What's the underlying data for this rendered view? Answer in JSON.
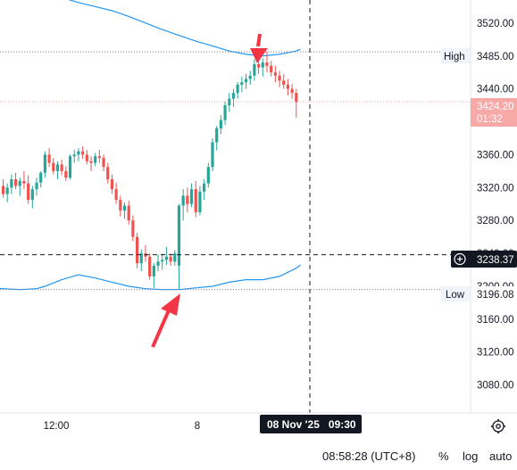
{
  "chart_data": {
    "type": "candlestick",
    "y_ticks": [
      3520,
      3480,
      3440,
      3400,
      3360,
      3320,
      3280,
      3240,
      3200,
      3160,
      3120,
      3080
    ],
    "y_tick_labels": [
      "3520.00",
      "3480.00",
      "3440.00",
      "3400.00",
      "3360.00",
      "3320.00",
      "3280.00",
      "3240.00",
      "3200.00",
      "3160.00",
      "3120.00",
      "3080.00"
    ],
    "ylim": [
      3046,
      3548
    ],
    "x_tick_labels": [
      "12:00",
      "8"
    ],
    "high": {
      "label": "High",
      "value": 3485.0,
      "value_text": "3485.00"
    },
    "low": {
      "label": "Low",
      "value": 3196.08,
      "value_text": "3196.08"
    },
    "last": {
      "value": 3424.2,
      "value_text": "3424.20",
      "countdown": "01:32"
    },
    "crosshair": {
      "value": 3238.37,
      "value_text": "3238.37",
      "time_text": "08 Nov '25   09:30"
    },
    "ohlc": [
      [
        3322,
        3330,
        3308,
        3312
      ],
      [
        3312,
        3325,
        3302,
        3320
      ],
      [
        3320,
        3336,
        3312,
        3330
      ],
      [
        3330,
        3338,
        3318,
        3322
      ],
      [
        3322,
        3332,
        3310,
        3328
      ],
      [
        3328,
        3340,
        3318,
        3325
      ],
      [
        3325,
        3335,
        3300,
        3305
      ],
      [
        3305,
        3322,
        3295,
        3318
      ],
      [
        3318,
        3332,
        3310,
        3326
      ],
      [
        3326,
        3340,
        3320,
        3338
      ],
      [
        3338,
        3364,
        3332,
        3360
      ],
      [
        3360,
        3368,
        3345,
        3350
      ],
      [
        3350,
        3356,
        3336,
        3340
      ],
      [
        3340,
        3352,
        3330,
        3348
      ],
      [
        3348,
        3354,
        3335,
        3340
      ],
      [
        3340,
        3346,
        3328,
        3332
      ],
      [
        3332,
        3360,
        3330,
        3358
      ],
      [
        3358,
        3366,
        3350,
        3360
      ],
      [
        3360,
        3368,
        3352,
        3364
      ],
      [
        3364,
        3370,
        3355,
        3360
      ],
      [
        3360,
        3366,
        3348,
        3352
      ],
      [
        3352,
        3358,
        3340,
        3350
      ],
      [
        3350,
        3362,
        3346,
        3358
      ],
      [
        3358,
        3366,
        3350,
        3356
      ],
      [
        3356,
        3360,
        3340,
        3345
      ],
      [
        3345,
        3350,
        3325,
        3330
      ],
      [
        3330,
        3336,
        3312,
        3318
      ],
      [
        3318,
        3326,
        3300,
        3305
      ],
      [
        3305,
        3310,
        3285,
        3292
      ],
      [
        3292,
        3302,
        3282,
        3298
      ],
      [
        3298,
        3304,
        3275,
        3280
      ],
      [
        3280,
        3286,
        3255,
        3260
      ],
      [
        3260,
        3265,
        3222,
        3228
      ],
      [
        3228,
        3245,
        3218,
        3240
      ],
      [
        3240,
        3250,
        3230,
        3236
      ],
      [
        3236,
        3240,
        3208,
        3212
      ],
      [
        3212,
        3228,
        3198,
        3225
      ],
      [
        3225,
        3238,
        3218,
        3230
      ],
      [
        3230,
        3240,
        3220,
        3232
      ],
      [
        3232,
        3248,
        3226,
        3236
      ],
      [
        3236,
        3240,
        3225,
        3230
      ],
      [
        3230,
        3244,
        3225,
        3240
      ],
      [
        3225,
        3300,
        3196,
        3298
      ],
      [
        3298,
        3318,
        3280,
        3310
      ],
      [
        3310,
        3320,
        3290,
        3300
      ],
      [
        3300,
        3325,
        3296,
        3318
      ],
      [
        3318,
        3328,
        3284,
        3290
      ],
      [
        3290,
        3322,
        3286,
        3315
      ],
      [
        3315,
        3330,
        3305,
        3325
      ],
      [
        3325,
        3350,
        3320,
        3345
      ],
      [
        3345,
        3380,
        3340,
        3375
      ],
      [
        3375,
        3395,
        3365,
        3392
      ],
      [
        3392,
        3408,
        3385,
        3402
      ],
      [
        3402,
        3425,
        3396,
        3420
      ],
      [
        3420,
        3435,
        3412,
        3428
      ],
      [
        3428,
        3440,
        3418,
        3435
      ],
      [
        3435,
        3448,
        3428,
        3445
      ],
      [
        3445,
        3455,
        3436,
        3448
      ],
      [
        3448,
        3458,
        3440,
        3452
      ],
      [
        3452,
        3462,
        3445,
        3456
      ],
      [
        3456,
        3476,
        3450,
        3470
      ],
      [
        3470,
        3480,
        3458,
        3466
      ],
      [
        3466,
        3477,
        3455,
        3472
      ],
      [
        3472,
        3485,
        3460,
        3468
      ],
      [
        3468,
        3474,
        3455,
        3460
      ],
      [
        3460,
        3468,
        3448,
        3456
      ],
      [
        3456,
        3462,
        3442,
        3450
      ],
      [
        3450,
        3458,
        3440,
        3445
      ],
      [
        3445,
        3452,
        3432,
        3440
      ],
      [
        3440,
        3446,
        3428,
        3435
      ],
      [
        3435,
        3440,
        3405,
        3424
      ]
    ],
    "upper_band": [
      [
        -4,
        3578
      ],
      [
        0,
        3572
      ],
      [
        4,
        3566
      ],
      [
        8,
        3560
      ],
      [
        12,
        3555
      ],
      [
        16,
        3548
      ],
      [
        18,
        3545
      ],
      [
        22,
        3540
      ],
      [
        26,
        3535
      ],
      [
        30,
        3528
      ],
      [
        34,
        3520
      ],
      [
        38,
        3512
      ],
      [
        42,
        3505
      ],
      [
        46,
        3498
      ],
      [
        50,
        3492
      ],
      [
        54,
        3486
      ],
      [
        58,
        3482
      ],
      [
        62,
        3480
      ],
      [
        66,
        3482
      ],
      [
        70,
        3486
      ],
      [
        71,
        3488
      ]
    ],
    "lower_band": [
      [
        -4,
        3198
      ],
      [
        0,
        3197
      ],
      [
        4,
        3196
      ],
      [
        8,
        3197
      ],
      [
        10,
        3200
      ],
      [
        14,
        3208
      ],
      [
        18,
        3214
      ],
      [
        22,
        3210
      ],
      [
        26,
        3205
      ],
      [
        30,
        3200
      ],
      [
        34,
        3197
      ],
      [
        38,
        3196
      ],
      [
        42,
        3196
      ],
      [
        46,
        3198
      ],
      [
        50,
        3200
      ],
      [
        54,
        3205
      ],
      [
        58,
        3208
      ],
      [
        62,
        3208
      ],
      [
        66,
        3212
      ],
      [
        70,
        3222
      ],
      [
        71,
        3226
      ]
    ]
  },
  "toolbar": {
    "time": "08:58:28 (UTC+8)",
    "percent": "%",
    "log": "log",
    "auto": "auto"
  },
  "colors": {
    "up": "#26a69a",
    "down": "#ef5350",
    "band": "#2196f3",
    "arrow": "#f23645",
    "crosshair": "#131722"
  }
}
